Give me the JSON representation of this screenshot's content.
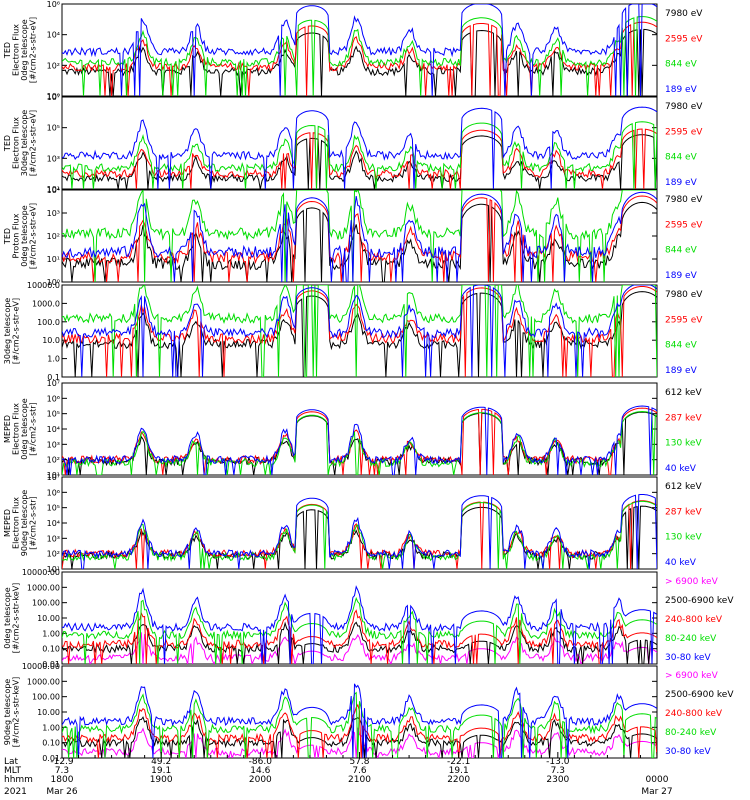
{
  "chart_data": {
    "type": "line",
    "panels": [
      {
        "ylabel_lines": [
          "TED",
          "Electron Flux",
          "0deg telescope",
          "[#/cm2-s-str-eV]"
        ],
        "scale": "log",
        "ylim_exp": [
          0,
          6
        ],
        "tick_labels": [
          "10⁰",
          "10²",
          "10⁴",
          "10⁶"
        ],
        "channels": [
          {
            "label": "7980 eV",
            "color": "#000000",
            "floor": 1.6,
            "peak": 1.9
          },
          {
            "label": "2595 eV",
            "color": "#ff0000",
            "floor": 1.9,
            "peak": 2.3
          },
          {
            "label": "844 eV",
            "color": "#00dd00",
            "floor": 2.2,
            "peak": 2.6
          },
          {
            "label": "189 eV",
            "color": "#0000ff",
            "floor": 2.9,
            "peak": 3.1
          }
        ]
      },
      {
        "ylabel_lines": [
          "TED",
          "Electron Flux",
          "30deg telescope",
          "[#/cm2-s-str-eV]"
        ],
        "scale": "log",
        "ylim_exp": [
          1,
          7
        ],
        "tick_labels": [
          "10¹",
          "10³",
          "10⁵",
          "10⁷"
        ],
        "channels": [
          {
            "label": "7980 eV",
            "color": "#000000",
            "floor": 1.7,
            "peak": 2.0
          },
          {
            "label": "2595 eV",
            "color": "#ff0000",
            "floor": 2.0,
            "peak": 2.3
          },
          {
            "label": "844 eV",
            "color": "#00dd00",
            "floor": 2.4,
            "peak": 2.6
          },
          {
            "label": "189 eV",
            "color": "#0000ff",
            "floor": 3.2,
            "peak": 3.0
          }
        ]
      },
      {
        "ylabel_lines": [
          "TED",
          "Proton Flux",
          "0deg telescope",
          "[#/cm2-s-str-eV]"
        ],
        "scale": "log",
        "ylim_exp": [
          0,
          4
        ],
        "tick_labels": [
          "10⁰",
          "10¹",
          "10²",
          "10³",
          "10⁴"
        ],
        "channels": [
          {
            "label": "7980 eV",
            "color": "#000000",
            "floor": 0.8,
            "peak": 1.8
          },
          {
            "label": "2595 eV",
            "color": "#ff0000",
            "floor": 1.1,
            "peak": 2.0
          },
          {
            "label": "844 eV",
            "color": "#00dd00",
            "floor": 2.1,
            "peak": 2.2
          },
          {
            "label": "189 eV",
            "color": "#0000ff",
            "floor": 1.3,
            "peak": 2.4
          }
        ]
      },
      {
        "ylabel_lines": [
          "30deg telescope",
          "[#/cm2-s-str-eV]"
        ],
        "scale": "log",
        "ylim_exp": [
          -1,
          4
        ],
        "tick_labels": [
          "0.1",
          "1.0",
          "10.0",
          "100.0",
          "1000.0",
          "10000.0"
        ],
        "channels": [
          {
            "label": "7980 eV",
            "color": "#000000",
            "floor": 0.8,
            "peak": 2.0
          },
          {
            "label": "2595 eV",
            "color": "#ff0000",
            "floor": 1.1,
            "peak": 2.2
          },
          {
            "label": "844 eV",
            "color": "#00dd00",
            "floor": 2.2,
            "peak": 2.3
          },
          {
            "label": "189 eV",
            "color": "#0000ff",
            "floor": 1.4,
            "peak": 2.5
          }
        ]
      },
      {
        "ylabel_lines": [
          "MEPED",
          "Electron Flux",
          "0deg telescope",
          "[#/cm2-s-str]"
        ],
        "scale": "log",
        "ylim_exp": [
          1,
          7
        ],
        "tick_labels": [
          "10¹",
          "10²",
          "10³",
          "10⁴",
          "10⁵",
          "10⁶",
          "10⁷"
        ],
        "channels": [
          {
            "label": "612 keV",
            "color": "#000000",
            "floor": 1.9,
            "peak": 2.4
          },
          {
            "label": "287 keV",
            "color": "#ff0000",
            "floor": 2.0,
            "peak": 2.8
          },
          {
            "label": "130 keV",
            "color": "#00dd00",
            "floor": 1.8,
            "peak": 3.0
          },
          {
            "label": "40 keV",
            "color": "#0000ff",
            "floor": 2.0,
            "peak": 3.4
          }
        ]
      },
      {
        "ylabel_lines": [
          "MEPED",
          "Electron Flux",
          "90deg telescope",
          "[#/cm2-s-str]"
        ],
        "scale": "log",
        "ylim_exp": [
          1,
          7
        ],
        "tick_labels": [
          "10¹",
          "10²",
          "10³",
          "10⁴",
          "10⁵",
          "10⁶",
          "10⁷"
        ],
        "channels": [
          {
            "label": "612 keV",
            "color": "#000000",
            "floor": 1.9,
            "peak": 2.4
          },
          {
            "label": "287 keV",
            "color": "#ff0000",
            "floor": 2.0,
            "peak": 2.9
          },
          {
            "label": "130 keV",
            "color": "#00dd00",
            "floor": 1.8,
            "peak": 3.3
          },
          {
            "label": "40 keV",
            "color": "#0000ff",
            "floor": 2.0,
            "peak": 3.8
          }
        ]
      },
      {
        "ylabel_lines": [
          "0deg telescope",
          "[#/cm2-s-str-keV]"
        ],
        "scale": "log",
        "ylim_exp": [
          -2,
          4
        ],
        "tick_labels": [
          "0.01",
          "0.10",
          "1.00",
          "10.00",
          "100.00",
          "1000.00",
          "10000.00"
        ],
        "channels": [
          {
            "label": "> 6900 keV",
            "color": "#ff00ff",
            "floor": -1.6,
            "peak": -0.4
          },
          {
            "label": "2500-6900 keV",
            "color": "#000000",
            "floor": -1.0,
            "peak": -0.3
          },
          {
            "label": "240-800 keV",
            "color": "#ff0000",
            "floor": -0.7,
            "peak": 0.1
          },
          {
            "label": "80-240 keV",
            "color": "#00dd00",
            "floor": -0.1,
            "peak": 0.6
          },
          {
            "label": "30-80 keV",
            "color": "#0000ff",
            "floor": 0.4,
            "peak": 1.0
          }
        ]
      },
      {
        "ylabel_lines": [
          "90deg telescope",
          "[#/cm2-s-str-keV]"
        ],
        "scale": "log",
        "ylim_exp": [
          -2,
          4
        ],
        "tick_labels": [
          "0.01",
          "0.10",
          "1.00",
          "10.00",
          "100.00",
          "1000.00",
          "10000.00"
        ],
        "channels": [
          {
            "label": "> 6900 keV",
            "color": "#ff00ff",
            "floor": -1.6,
            "peak": -0.4
          },
          {
            "label": "2500-6900 keV",
            "color": "#000000",
            "floor": -1.0,
            "peak": -0.3
          },
          {
            "label": "240-800 keV",
            "color": "#ff0000",
            "floor": -0.7,
            "peak": 0.1
          },
          {
            "label": "80-240 keV",
            "color": "#00dd00",
            "floor": -0.1,
            "peak": 0.6
          },
          {
            "label": "30-80 keV",
            "color": "#0000ff",
            "floor": 0.4,
            "peak": 1.0
          }
        ]
      }
    ],
    "events": [
      {
        "t": 0.135,
        "h": 2.1
      },
      {
        "t": 0.225,
        "h": 1.7
      },
      {
        "t": 0.375,
        "h": 1.9
      },
      {
        "t": 0.495,
        "h": 2.2
      },
      {
        "t": 0.585,
        "h": 1.4
      },
      {
        "t": 0.765,
        "h": 1.8
      },
      {
        "t": 0.83,
        "h": 1.6
      },
      {
        "t": 0.935,
        "h": 1.5
      }
    ],
    "passes": [
      {
        "t": 0.42,
        "h": 2.0,
        "w": 0.028
      },
      {
        "t": 0.705,
        "h": 2.4,
        "w": 0.035
      },
      {
        "t": 0.975,
        "h": 2.6,
        "w": 0.035
      }
    ],
    "time_axis": {
      "x_range_hours": [
        18.0,
        24.0
      ],
      "row_headers": [
        "Lat",
        "MLT",
        "hhmm",
        "2021"
      ],
      "columns": [
        {
          "hour": 18.0,
          "lat": "-12.9",
          "mlt": "7.3",
          "hhmm": "1800",
          "date": "Mar 26"
        },
        {
          "hour": 19.0,
          "lat": "49.2",
          "mlt": "19.1",
          "hhmm": "1900",
          "date": ""
        },
        {
          "hour": 20.0,
          "lat": "-86.0",
          "mlt": "14.6",
          "hhmm": "2000",
          "date": ""
        },
        {
          "hour": 21.0,
          "lat": "57.8",
          "mlt": "7.6",
          "hhmm": "2100",
          "date": ""
        },
        {
          "hour": 22.0,
          "lat": "-22.1",
          "mlt": "19.1",
          "hhmm": "2200",
          "date": ""
        },
        {
          "hour": 23.0,
          "lat": "-13.0",
          "mlt": "7.3",
          "hhmm": "2300",
          "date": ""
        },
        {
          "hour": 24.0,
          "lat": "",
          "mlt": "",
          "hhmm": "0000",
          "date": "Mar 27"
        }
      ]
    }
  }
}
